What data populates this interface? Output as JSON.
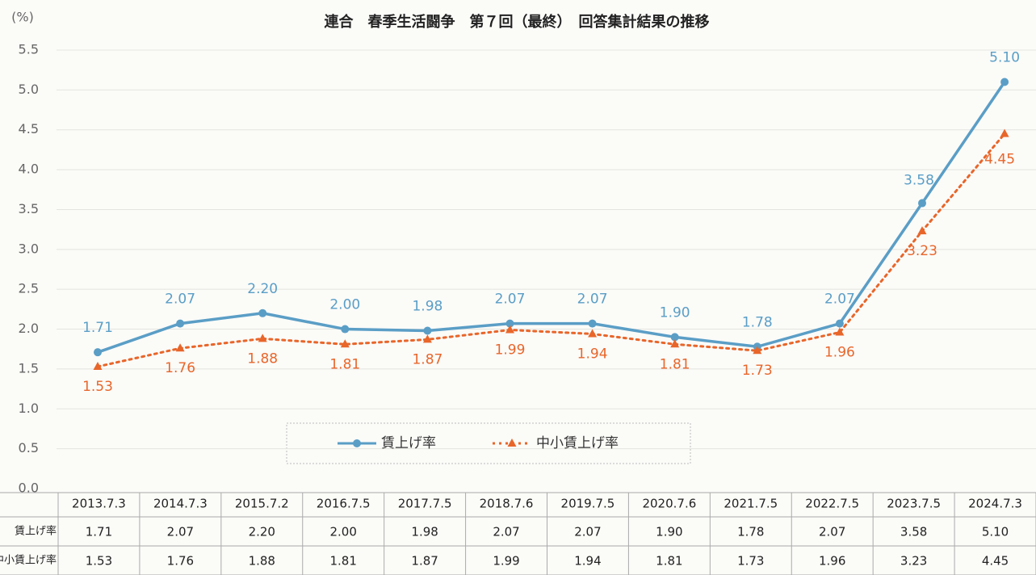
{
  "chart_data": {
    "type": "line",
    "title": "連合　春季生活闘争　第７回（最終）　回答集計結果の推移",
    "y_axis_label": "(%)",
    "categories": [
      "2013.7.3",
      "2014.7.3",
      "2015.7.2",
      "2016.7.5",
      "2017.7.5",
      "2018.7.6",
      "2019.7.5",
      "2020.7.6",
      "2021.7.5",
      "2022.7.5",
      "2023.7.5",
      "2024.7.3"
    ],
    "series": [
      {
        "name": "賃上げ率",
        "color": "#5a9ec6",
        "marker": "circle",
        "dash": "solid",
        "values": [
          1.71,
          2.07,
          2.2,
          2.0,
          1.98,
          2.07,
          2.07,
          1.9,
          1.78,
          2.07,
          3.58,
          5.1
        ],
        "value_labels": [
          "1.71",
          "2.07",
          "2.20",
          "2.00",
          "1.98",
          "2.07",
          "2.07",
          "1.90",
          "1.78",
          "2.07",
          "3.58",
          "5.10"
        ]
      },
      {
        "name": "中小賃上げ率",
        "color": "#e8662a",
        "marker": "triangle",
        "dash": "dotted",
        "values": [
          1.53,
          1.76,
          1.88,
          1.81,
          1.87,
          1.99,
          1.94,
          1.81,
          1.73,
          1.96,
          3.23,
          4.45
        ],
        "value_labels": [
          "1.53",
          "1.76",
          "1.88",
          "1.81",
          "1.87",
          "1.99",
          "1.94",
          "1.81",
          "1.73",
          "1.96",
          "3.23",
          "4.45"
        ]
      }
    ],
    "ylim": [
      0,
      5.5
    ],
    "yticks": [
      {
        "value": 0,
        "label": "0.0"
      },
      {
        "value": 0.5,
        "label": "0.5"
      },
      {
        "value": 1,
        "label": "1.0"
      },
      {
        "value": 1.5,
        "label": "1.5"
      },
      {
        "value": 2,
        "label": "2.0"
      },
      {
        "value": 2.5,
        "label": "2.5"
      },
      {
        "value": 3,
        "label": "3.0"
      },
      {
        "value": 3.5,
        "label": "3.5"
      },
      {
        "value": 4,
        "label": "4.0"
      },
      {
        "value": 4.5,
        "label": "4.5"
      },
      {
        "value": 5,
        "label": "5.0"
      },
      {
        "value": 5.5,
        "label": "5.5"
      }
    ],
    "grid": true,
    "legend": "bottom-center"
  }
}
